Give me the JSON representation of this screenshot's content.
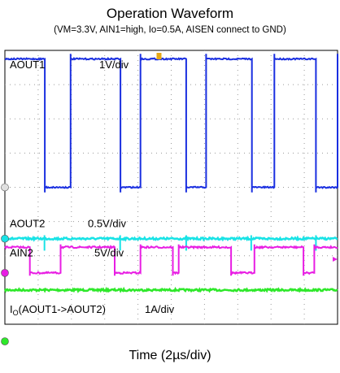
{
  "header": {
    "title": "Operation Waveform",
    "subtitle": "(VM=3.3V, AIN1=high, Io=0.5A, AISEN connect to GND)"
  },
  "chart_data": {
    "type": "line",
    "title": "Operation Waveform",
    "subtitle": "(VM=3.3V, AIN1=high, Io=0.5A, AISEN connect to GND)",
    "xlabel": "Time (2µs/div)",
    "ylabel": "",
    "time_per_div_us": 2,
    "divisions_x": 10,
    "divisions_y": 8,
    "grid": true,
    "colors": {
      "aout1": "#1a2fe0",
      "aout2": "#19e3e6",
      "ain2": "#e81ee3",
      "io": "#2ee82a",
      "trigger": "#e6a817"
    },
    "x_range_us": [
      0,
      20
    ],
    "series": [
      {
        "name": "AOUT1",
        "label": "AOUT1",
        "scale": "1V/div",
        "ground_level_div": 0,
        "low_div": 0,
        "high_div": 3.75,
        "transitions_us": [
          2.38,
          3.92,
          6.93,
          8.1,
          10.9,
          12.08,
          14.81,
          16.2,
          18.7,
          20
        ]
      },
      {
        "name": "AOUT2",
        "label": "AOUT2",
        "scale": "0.5V/div",
        "level_div": -1.5,
        "spikes_us": [
          2.38,
          6.93,
          10.9,
          14.81,
          18.7
        ]
      },
      {
        "name": "AIN2",
        "label": "AIN2",
        "scale": "5V/div",
        "low_div": -2.5,
        "high_div": -1.75,
        "transitions_us": [
          1.5,
          3.3,
          6.55,
          8.1,
          10.08,
          10.42,
          13.6,
          15.0,
          17.92,
          18.6
        ]
      },
      {
        "name": "IO(AOUT1->AOUT2)",
        "label_main": "I",
        "label_sub": "O",
        "label_rest": "(AOUT1->AOUT2)",
        "scale": "1A/div",
        "level_div": -3.0
      }
    ]
  }
}
